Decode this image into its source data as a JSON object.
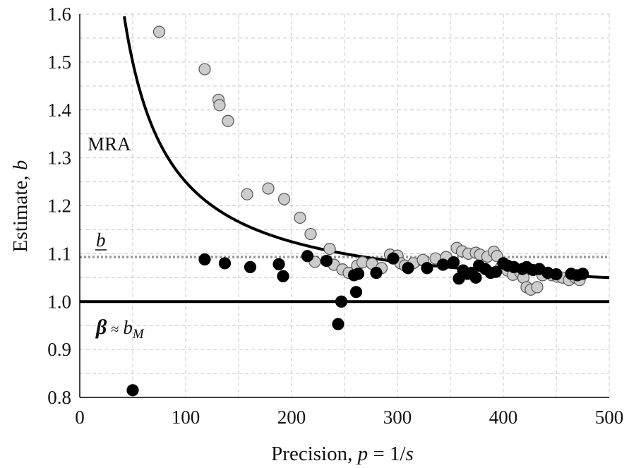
{
  "chart_data": {
    "type": "scatter",
    "xlim": [
      0,
      500
    ],
    "ylim": [
      0.8,
      1.6
    ],
    "x_ticks": [
      "0",
      "100",
      "200",
      "300",
      "400",
      "500"
    ],
    "x_tick_values": [
      0,
      100,
      200,
      300,
      400,
      500
    ],
    "y_ticks": [
      "0.8",
      "0.9",
      "1.0",
      "1.1",
      "1.2",
      "1.3",
      "1.4",
      "1.5",
      "1.6"
    ],
    "y_tick_values": [
      0.8,
      0.9,
      1.0,
      1.1,
      1.2,
      1.3,
      1.4,
      1.5,
      1.6
    ],
    "grid": true,
    "labels": {
      "x_title_prefix": "Precision, ",
      "x_title_var": "p",
      "x_title_mid": " = 1/",
      "x_title_var2": "s",
      "y_title_prefix": "Estimate, ",
      "y_title_var": "b",
      "mra": "MRA",
      "b_bar": "b",
      "beta": "β",
      "approx": "≈",
      "bm_base": "b",
      "bm_sub": "M"
    },
    "reference_lines": [
      {
        "id": "b-bar",
        "y": 1.093,
        "style": "dotted",
        "color": "#999999"
      },
      {
        "id": "beta",
        "y": 1.0,
        "style": "solid",
        "color": "#000000"
      }
    ],
    "mra_curve": {
      "form": "y = 1 + c / x",
      "c": 25,
      "x_range": [
        42,
        500
      ],
      "color": "#000000"
    },
    "series": [
      {
        "id": "gray",
        "fill": "#cccccc",
        "stroke": "#555555",
        "points": [
          [
            75,
            1.563
          ],
          [
            118,
            1.485
          ],
          [
            131,
            1.421
          ],
          [
            132,
            1.41
          ],
          [
            140,
            1.377
          ],
          [
            158,
            1.224
          ],
          [
            178,
            1.236
          ],
          [
            193,
            1.214
          ],
          [
            208,
            1.175
          ],
          [
            218,
            1.141
          ],
          [
            222,
            1.083
          ],
          [
            236,
            1.11
          ],
          [
            240,
            1.077
          ],
          [
            248,
            1.067
          ],
          [
            254,
            1.06
          ],
          [
            262,
            1.075
          ],
          [
            267,
            1.082
          ],
          [
            276,
            1.079
          ],
          [
            285,
            1.07
          ],
          [
            293,
            1.098
          ],
          [
            300,
            1.096
          ],
          [
            303,
            1.08
          ],
          [
            307,
            1.075
          ],
          [
            315,
            1.08
          ],
          [
            324,
            1.087
          ],
          [
            336,
            1.09
          ],
          [
            346,
            1.093
          ],
          [
            356,
            1.112
          ],
          [
            361,
            1.105
          ],
          [
            367,
            1.1
          ],
          [
            374,
            1.102
          ],
          [
            378,
            1.098
          ],
          [
            385,
            1.094
          ],
          [
            391,
            1.104
          ],
          [
            394,
            1.095
          ],
          [
            398,
            1.072
          ],
          [
            404,
            1.065
          ],
          [
            409,
            1.056
          ],
          [
            416,
            1.061
          ],
          [
            419,
            1.05
          ],
          [
            422,
            1.03
          ],
          [
            426,
            1.025
          ],
          [
            432,
            1.03
          ],
          [
            437,
            1.055
          ],
          [
            442,
            1.06
          ],
          [
            446,
            1.055
          ],
          [
            451,
            1.052
          ],
          [
            456,
            1.05
          ],
          [
            462,
            1.045
          ],
          [
            468,
            1.05
          ],
          [
            472,
            1.045
          ]
        ]
      },
      {
        "id": "black",
        "fill": "#000000",
        "stroke": "#000000",
        "points": [
          [
            50,
            0.815
          ],
          [
            118,
            1.088
          ],
          [
            137,
            1.08
          ],
          [
            161,
            1.072
          ],
          [
            188,
            1.078
          ],
          [
            192,
            1.053
          ],
          [
            215,
            1.095
          ],
          [
            233,
            1.085
          ],
          [
            244,
            0.953
          ],
          [
            247,
            1.0
          ],
          [
            259,
            1.055
          ],
          [
            261,
            1.02
          ],
          [
            263,
            1.058
          ],
          [
            280,
            1.06
          ],
          [
            296,
            1.09
          ],
          [
            310,
            1.07
          ],
          [
            328,
            1.07
          ],
          [
            343,
            1.077
          ],
          [
            353,
            1.082
          ],
          [
            358,
            1.048
          ],
          [
            362,
            1.065
          ],
          [
            366,
            1.058
          ],
          [
            370,
            1.06
          ],
          [
            374,
            1.05
          ],
          [
            377,
            1.075
          ],
          [
            383,
            1.068
          ],
          [
            388,
            1.06
          ],
          [
            393,
            1.062
          ],
          [
            400,
            1.08
          ],
          [
            404,
            1.075
          ],
          [
            410,
            1.072
          ],
          [
            418,
            1.068
          ],
          [
            422,
            1.072
          ],
          [
            428,
            1.066
          ],
          [
            434,
            1.068
          ],
          [
            442,
            1.06
          ],
          [
            450,
            1.057
          ],
          [
            464,
            1.058
          ],
          [
            470,
            1.055
          ],
          [
            475,
            1.058
          ]
        ]
      }
    ]
  }
}
